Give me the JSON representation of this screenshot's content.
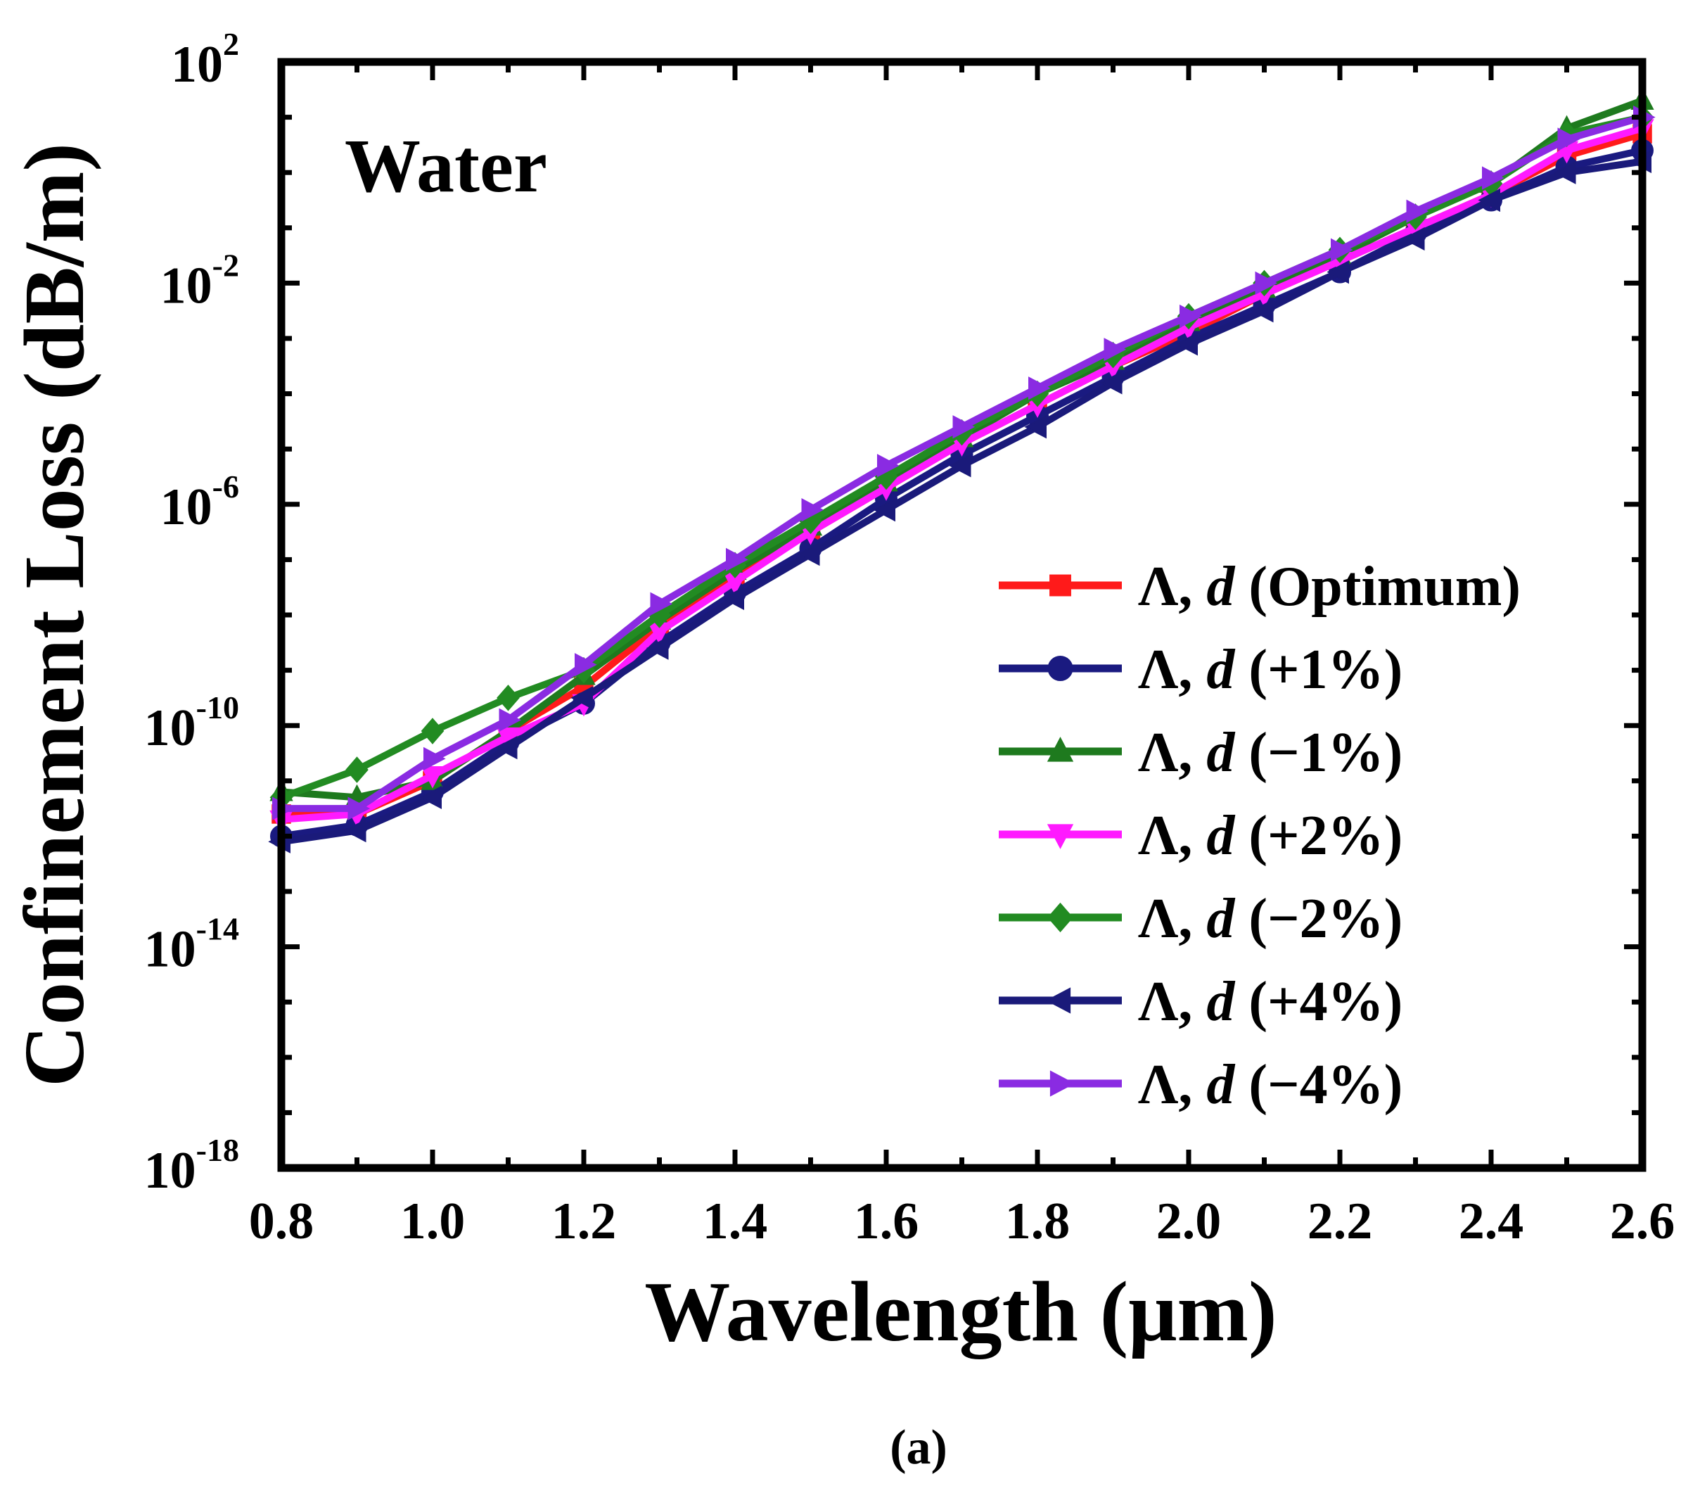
{
  "chart_data": {
    "type": "line",
    "yscale": "log",
    "annotation": "Water",
    "xlabel": "Wavelength (μm)",
    "ylabel": "Confinement Loss (dB/m)",
    "caption": "(a)",
    "xlim": [
      0.8,
      2.6
    ],
    "ylim_exponent": [
      -18,
      2
    ],
    "x_ticks": [
      "0.8",
      "1.0",
      "1.2",
      "1.4",
      "1.6",
      "1.8",
      "2.0",
      "2.2",
      "2.4",
      "2.6"
    ],
    "y_ticks": [
      {
        "base": "10",
        "exp": "2",
        "value": 2
      },
      {
        "base": "10",
        "exp": "-2",
        "value": -2
      },
      {
        "base": "10",
        "exp": "-6",
        "value": -6
      },
      {
        "base": "10",
        "exp": "-10",
        "value": -10
      },
      {
        "base": "10",
        "exp": "-14",
        "value": -14
      },
      {
        "base": "10",
        "exp": "-18",
        "value": -18
      }
    ],
    "x": [
      0.8,
      0.9,
      1.0,
      1.1,
      1.2,
      1.3,
      1.4,
      1.5,
      1.6,
      1.7,
      1.8,
      1.9,
      2.0,
      2.1,
      2.2,
      2.3,
      2.4,
      2.5,
      2.6
    ],
    "series": [
      {
        "name": "Λ, d (Optimum)",
        "prefix": "Λ, ",
        "italic": "d",
        "suffix": " (Optimum)",
        "color": "#ff1a1a",
        "marker": "square",
        "log10_values": [
          -11.6,
          -11.6,
          -11.0,
          -10.1,
          -9.3,
          -8.2,
          -7.3,
          -6.5,
          -5.7,
          -4.9,
          -4.2,
          -3.5,
          -2.9,
          -2.2,
          -1.6,
          -1.0,
          -0.4,
          0.3,
          0.7
        ]
      },
      {
        "name": "Λ, d (+1%)",
        "prefix": "Λ, ",
        "italic": "d",
        "suffix": " (+1%)",
        "color": "#1a1a80",
        "marker": "circle",
        "log10_values": [
          -12.0,
          -11.8,
          -11.2,
          -10.3,
          -9.6,
          -8.5,
          -7.6,
          -6.8,
          -5.9,
          -5.1,
          -4.4,
          -3.7,
          -3.0,
          -2.4,
          -1.8,
          -1.1,
          -0.5,
          0.1,
          0.4
        ]
      },
      {
        "name": "Λ, d (−1%)",
        "prefix": "Λ, ",
        "italic": "d",
        "suffix": " (−1%)",
        "color": "#1e7a1e",
        "marker": "triangle-up",
        "log10_values": [
          -11.2,
          -11.3,
          -11.0,
          -10.1,
          -9.1,
          -8.1,
          -7.2,
          -6.4,
          -5.6,
          -4.8,
          -4.0,
          -3.4,
          -2.7,
          -2.1,
          -1.5,
          -0.8,
          -0.2,
          0.8,
          1.3
        ]
      },
      {
        "name": "Λ, d (+2%)",
        "prefix": "Λ, ",
        "italic": "d",
        "suffix": " (+2%)",
        "color": "#ff1aff",
        "marker": "triangle-down",
        "log10_values": [
          -11.7,
          -11.6,
          -10.9,
          -10.2,
          -9.6,
          -8.3,
          -7.4,
          -6.5,
          -5.7,
          -4.9,
          -4.2,
          -3.5,
          -2.8,
          -2.2,
          -1.6,
          -1.0,
          -0.4,
          0.4,
          0.8
        ]
      },
      {
        "name": "Λ, d (−2%)",
        "prefix": "Λ, ",
        "italic": "d",
        "suffix": " (−2%)",
        "color": "#228b22",
        "marker": "diamond",
        "log10_values": [
          -11.3,
          -10.8,
          -10.1,
          -9.5,
          -9.0,
          -8.0,
          -7.1,
          -6.3,
          -5.5,
          -4.7,
          -4.0,
          -3.3,
          -2.6,
          -2.0,
          -1.4,
          -0.8,
          -0.2,
          0.7,
          1.0
        ]
      },
      {
        "name": "Λ, d (+4%)",
        "prefix": "Λ, ",
        "italic": "d",
        "suffix": " (+4%)",
        "color": "#1a1a7a",
        "marker": "triangle-left",
        "log10_values": [
          -12.1,
          -11.9,
          -11.3,
          -10.4,
          -9.5,
          -8.6,
          -7.7,
          -6.9,
          -6.1,
          -5.3,
          -4.6,
          -3.8,
          -3.1,
          -2.5,
          -1.8,
          -1.2,
          -0.5,
          0.0,
          0.2
        ]
      },
      {
        "name": "Λ, d (−4%)",
        "prefix": "Λ, ",
        "italic": "d",
        "suffix": " (−4%)",
        "color": "#8a2be2",
        "marker": "triangle-right",
        "log10_values": [
          -11.5,
          -11.5,
          -10.6,
          -9.9,
          -8.9,
          -7.8,
          -7.0,
          -6.1,
          -5.3,
          -4.6,
          -3.9,
          -3.2,
          -2.6,
          -2.0,
          -1.4,
          -0.7,
          -0.1,
          0.6,
          1.0
        ]
      }
    ]
  }
}
